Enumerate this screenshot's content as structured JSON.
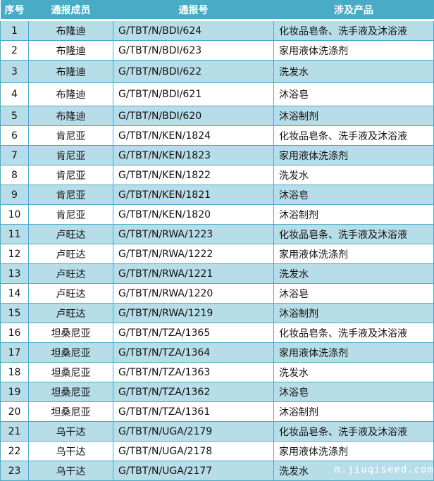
{
  "headers": [
    "序号",
    "通报成员",
    "通报号",
    "涉及产品"
  ],
  "rows": [
    [
      "1",
      "布隆迪",
      "G/TBT/N/BDI/624",
      "化妆品皂条、洗手液及沐浴液"
    ],
    [
      "2",
      "布隆迪",
      "G/TBT/N/BDI/623",
      "家用液体洗涤剂"
    ],
    [
      "3",
      "布隆迪",
      "G/TBT/N/BDI/622",
      "洗发水"
    ],
    [
      "4",
      "布隆迪",
      "G/TBT/N/BDI/621",
      "沐浴皂"
    ],
    [
      "5",
      "布隆迪",
      "G/TBT/N/BDI/620",
      "沐浴制剂"
    ],
    [
      "6",
      "肯尼亚",
      "G/TBT/N/KEN/1824",
      "化妆品皂条、洗手液及沐浴液"
    ],
    [
      "7",
      "肯尼亚",
      "G/TBT/N/KEN/1823",
      "家用液体洗涤剂"
    ],
    [
      "8",
      "肯尼亚",
      "G/TBT/N/KEN/1822",
      "洗发水"
    ],
    [
      "9",
      "肯尼亚",
      "G/TBT/N/KEN/1821",
      "沐浴皂"
    ],
    [
      "10",
      "肯尼亚",
      "G/TBT/N/KEN/1820",
      "沐浴制剂"
    ],
    [
      "11",
      "卢旺达",
      "G/TBT/N/RWA/1223",
      "化妆品皂条、洗手液及沐浴液"
    ],
    [
      "12",
      "卢旺达",
      "G/TBT/N/RWA/1222",
      "家用液体洗涤剂"
    ],
    [
      "13",
      "卢旺达",
      "G/TBT/N/RWA/1221",
      "洗发水"
    ],
    [
      "14",
      "卢旺达",
      "G/TBT/N/RWA/1220",
      "沐浴皂"
    ],
    [
      "15",
      "卢旺达",
      "G/TBT/N/RWA/1219",
      "沐浴制剂"
    ],
    [
      "16",
      "坦桑尼亚",
      "G/TBT/N/TZA/1365",
      "化妆品皂条、洗手液及沐浴液"
    ],
    [
      "17",
      "坦桑尼亚",
      "G/TBT/N/TZA/1364",
      "家用液体洗涤剂"
    ],
    [
      "18",
      "坦桑尼亚",
      "G/TBT/N/TZA/1363",
      "洗发水"
    ],
    [
      "19",
      "坦桑尼亚",
      "G/TBT/N/TZA/1362",
      "沐浴皂"
    ],
    [
      "20",
      "坦桑尼亚",
      "G/TBT/N/TZA/1361",
      "沐浴制剂"
    ],
    [
      "21",
      "乌干达",
      "G/TBT/N/UGA/2179",
      "化妆品皂条、洗手液及沐浴液"
    ],
    [
      "22",
      "乌干达",
      "G/TBT/N/UGA/2178",
      "家用液体洗涤剂"
    ],
    [
      "23",
      "乌干达",
      "G/TBT/N/UGA/2177",
      "洗发水"
    ]
  ],
  "watermark": "m.jiuqiseed.com",
  "colors": {
    "header": "#4aabc6",
    "alt_row": "#b7dde8"
  }
}
